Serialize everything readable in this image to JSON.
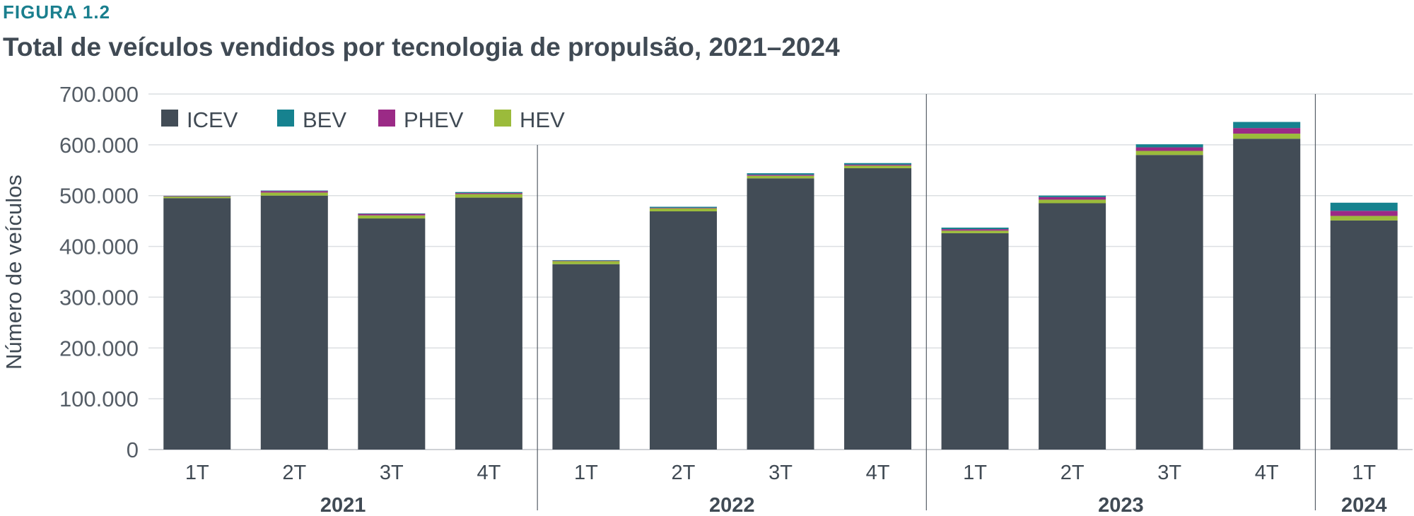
{
  "figure_label": "FIGURA 1.2",
  "title": "Total de veículos vendidos por tecnologia de propulsão, 2021–2024",
  "chart_data": {
    "type": "bar",
    "stacked": true,
    "ylabel": "Número de veículos",
    "ylim": [
      0,
      700000
    ],
    "yticks": [
      0,
      100000,
      200000,
      300000,
      400000,
      500000,
      600000,
      700000
    ],
    "ytick_labels": [
      "0",
      "100.000",
      "200.000",
      "300.000",
      "400.000",
      "500.000",
      "600.000",
      "700.000"
    ],
    "grid": true,
    "legend_position": "top-left",
    "categories": [
      "1T",
      "2T",
      "3T",
      "4T",
      "1T",
      "2T",
      "3T",
      "4T",
      "1T",
      "2T",
      "3T",
      "4T",
      "1T"
    ],
    "groups": [
      {
        "label": "2021",
        "count": 4
      },
      {
        "label": "2022",
        "count": 4
      },
      {
        "label": "2023",
        "count": 4
      },
      {
        "label": "2024",
        "count": 1
      }
    ],
    "series": [
      {
        "name": "ICEV",
        "color": "#424c56",
        "values": [
          495000,
          500000,
          455000,
          496000,
          365000,
          469000,
          534000,
          554000,
          426000,
          485000,
          580000,
          612000,
          451000
        ]
      },
      {
        "name": "HEV",
        "color": "#9bbb3b",
        "values": [
          3000,
          6000,
          6000,
          7000,
          6000,
          6000,
          5000,
          5000,
          5000,
          7000,
          8000,
          10000,
          9000
        ]
      },
      {
        "name": "PHEV",
        "color": "#9b2a86",
        "values": [
          1000,
          3000,
          3000,
          2000,
          1000,
          1000,
          2000,
          2000,
          3000,
          5000,
          7000,
          11000,
          10000
        ]
      },
      {
        "name": "BEV",
        "color": "#16828f",
        "values": [
          500,
          1000,
          1000,
          2000,
          1000,
          2000,
          3000,
          3000,
          3000,
          3000,
          6000,
          12000,
          16000
        ]
      }
    ],
    "legend_order": [
      "ICEV",
      "BEV",
      "PHEV",
      "HEV"
    ]
  }
}
